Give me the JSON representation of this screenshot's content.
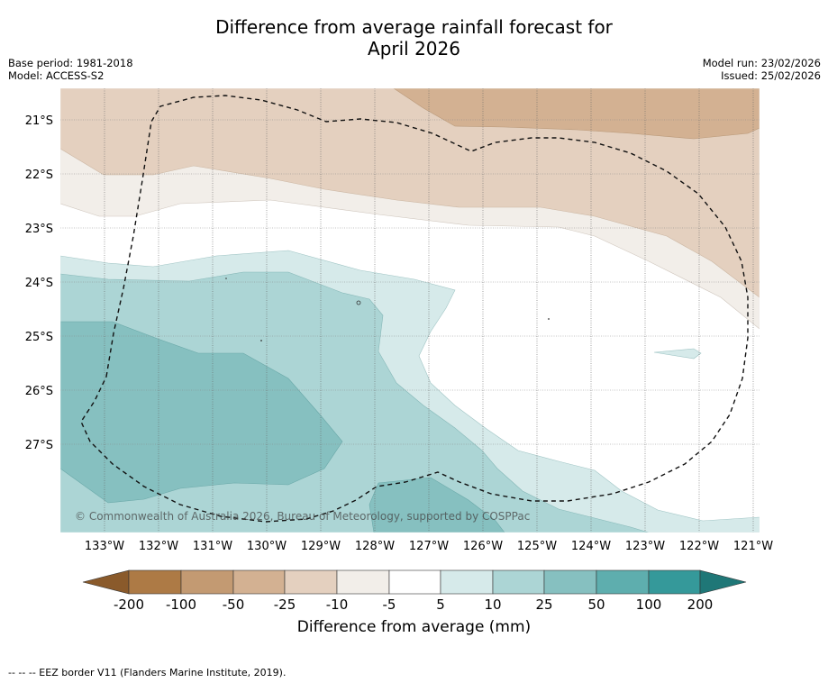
{
  "header": {
    "title_line1": "Difference from average rainfall forecast for",
    "title_line2": "April 2026",
    "base_period": "Base period: 1981-2018",
    "model": "Model: ACCESS-S2",
    "model_run": "Model run: 23/02/2026",
    "issued": "Issued: 25/02/2026"
  },
  "map": {
    "lat_labels": [
      "21°S",
      "22°S",
      "23°S",
      "24°S",
      "25°S",
      "26°S",
      "27°S"
    ],
    "lon_labels": [
      "133°W",
      "132°W",
      "131°W",
      "130°W",
      "129°W",
      "128°W",
      "127°W",
      "126°W",
      "125°W",
      "124°W",
      "123°W",
      "122°W",
      "121°W"
    ],
    "copyright": "© Commonwealth of Australia 2026, Bureau of Meteorology, supported by COSPPac"
  },
  "colorbar": {
    "title": "Difference from average (mm)",
    "tick_labels": [
      "-200",
      "-100",
      "-50",
      "-25",
      "-10",
      "-5",
      "5",
      "10",
      "25",
      "50",
      "100",
      "200"
    ],
    "colors": [
      "#8a5a2b",
      "#ad7a45",
      "#c39a72",
      "#d3b192",
      "#e4d0bf",
      "#f2eee9",
      "#ffffff",
      "#d6eaea",
      "#acd5d5",
      "#86c0c0",
      "#5eaeae",
      "#35999a",
      "#1f7777"
    ]
  },
  "footnote": "--  --  -- EEZ border V11 (Flanders Marine Institute, 2019)."
}
